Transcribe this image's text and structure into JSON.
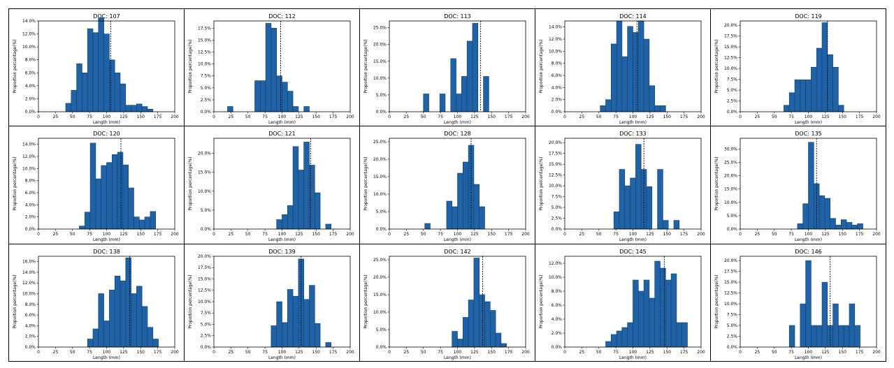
{
  "colors": {
    "bar": "#1f63a6",
    "bar_edge": "#123f73",
    "mean_line": "#000000"
  },
  "chart_data": [
    {
      "type": "bar",
      "title": "DOC: 107",
      "xlabel": "Length (mm)",
      "ylabel": "Proportion percentage(%)",
      "xlim": [
        0,
        200
      ],
      "ylim": [
        0,
        14
      ],
      "yticks": [
        0,
        2,
        4,
        6,
        8,
        10,
        12,
        14
      ],
      "ytick_labels": [
        "0.0%",
        "2.0%",
        "4.0%",
        "6.0%",
        "8.0%",
        "10.0%",
        "12.0%",
        "14.0%"
      ],
      "xticks": [
        0,
        25,
        50,
        75,
        100,
        125,
        150,
        175,
        200
      ],
      "bin_start": 40,
      "bin_width": 8,
      "values": [
        1.3,
        3.3,
        7.4,
        6.0,
        12.8,
        12.2,
        14.5,
        12.0,
        8.0,
        6.0,
        4.3,
        1.0,
        1.0,
        1.2,
        0.8,
        0.4
      ],
      "mean": 106
    },
    {
      "type": "bar",
      "title": "DOC: 112",
      "xlabel": "Length (mm)",
      "ylabel": "Proportion percentage(%)",
      "xlim": [
        0,
        200
      ],
      "ylim": [
        0,
        19
      ],
      "yticks": [
        0,
        2.5,
        5,
        7.5,
        10,
        12.5,
        15,
        17.5
      ],
      "ytick_labels": [
        "0.0%",
        "2.5%",
        "5.0%",
        "7.5%",
        "10.0%",
        "12.5%",
        "15.0%",
        "17.5%"
      ],
      "xticks": [
        0,
        25,
        50,
        75,
        100,
        125,
        150,
        175,
        200
      ],
      "bin_start": 20,
      "bin_width": 8,
      "values": [
        1.1,
        0,
        0,
        0,
        0,
        6.5,
        6.5,
        18.5,
        17.5,
        7.5,
        6.2,
        4.3,
        1.1,
        0,
        1.1
      ],
      "mean": 98
    },
    {
      "type": "bar",
      "title": "DOC: 113",
      "xlabel": "Length (mm)",
      "ylabel": "Proportion percentage(%)",
      "xlim": [
        0,
        200
      ],
      "ylim": [
        0,
        27
      ],
      "yticks": [
        0,
        5,
        10,
        15,
        20,
        25
      ],
      "ytick_labels": [
        "0.0%",
        "5.0%",
        "10.0%",
        "15.0%",
        "20.0%",
        "25.0%"
      ],
      "xticks": [
        0,
        25,
        50,
        75,
        100,
        125,
        150,
        175,
        200
      ],
      "bin_start": 50,
      "bin_width": 8,
      "values": [
        5.3,
        0,
        0,
        5.3,
        0,
        15.8,
        5.3,
        10.5,
        21.0,
        26.3,
        0,
        10.5
      ],
      "mean": 134
    },
    {
      "type": "bar",
      "title": "DOC: 114",
      "xlabel": "Length (mm)",
      "ylabel": "Proportion percentage(%)",
      "xlim": [
        0,
        200
      ],
      "ylim": [
        0,
        15
      ],
      "yticks": [
        0,
        2,
        4,
        6,
        8,
        10,
        12,
        14
      ],
      "ytick_labels": [
        "0.0%",
        "2.0%",
        "4.0%",
        "6.0%",
        "8.0%",
        "10.0%",
        "12.0%",
        "14.0%"
      ],
      "xticks": [
        0,
        25,
        50,
        75,
        100,
        125,
        150,
        175,
        200
      ],
      "bin_start": 52,
      "bin_width": 8,
      "values": [
        1.0,
        2.0,
        11.2,
        15.0,
        9.1,
        14.1,
        13.1,
        15.0,
        12.0,
        4.3,
        1.0,
        1.0
      ],
      "mean": 106
    },
    {
      "type": "bar",
      "title": "DOC: 119",
      "xlabel": "Length (mm)",
      "ylabel": "Proportion percentage(%)",
      "xlim": [
        0,
        200
      ],
      "ylim": [
        0,
        21
      ],
      "yticks": [
        0,
        2.5,
        5,
        7.5,
        10,
        12.5,
        15,
        17.5,
        20
      ],
      "ytick_labels": [
        "0.0%",
        "2.5%",
        "5.0%",
        "7.5%",
        "10.0%",
        "12.5%",
        "15.0%",
        "17.5%",
        "20.0%"
      ],
      "xticks": [
        0,
        25,
        50,
        75,
        100,
        125,
        150,
        175,
        200
      ],
      "bin_start": 64,
      "bin_width": 8,
      "values": [
        1.5,
        4.4,
        7.4,
        7.4,
        7.4,
        10.3,
        14.7,
        20.6,
        13.2,
        10.3,
        1.5
      ],
      "mean": 128
    },
    {
      "type": "bar",
      "title": "DOC: 120",
      "xlabel": "Length (mm)",
      "ylabel": "Proportion percentage(%)",
      "xlim": [
        0,
        200
      ],
      "ylim": [
        0,
        15
      ],
      "yticks": [
        0,
        2,
        4,
        6,
        8,
        10,
        12,
        14
      ],
      "ytick_labels": [
        "0.0%",
        "2.0%",
        "4.0%",
        "6.0%",
        "8.0%",
        "10.0%",
        "12.0%",
        "14.0%"
      ],
      "xticks": [
        0,
        25,
        50,
        75,
        100,
        125,
        150,
        175,
        200
      ],
      "bin_start": 60,
      "bin_width": 8,
      "values": [
        0.5,
        2.8,
        14.2,
        8.3,
        10.5,
        11.0,
        12.3,
        12.7,
        10.6,
        6.8,
        2.0,
        1.5,
        2.0,
        2.9
      ],
      "mean": 121
    },
    {
      "type": "bar",
      "title": "DOC: 121",
      "xlabel": "Length (mm)",
      "ylabel": "Proportion percentage(%)",
      "xlim": [
        0,
        200
      ],
      "ylim": [
        0,
        24
      ],
      "yticks": [
        0,
        5,
        10,
        15,
        20
      ],
      "ytick_labels": [
        "0.0%",
        "5.0%",
        "10.0%",
        "15.0%",
        "20.0%"
      ],
      "xticks": [
        0,
        25,
        50,
        75,
        100,
        125,
        150,
        175,
        200
      ],
      "bin_start": 92,
      "bin_width": 8,
      "values": [
        2.5,
        3.8,
        6.2,
        21.8,
        15.6,
        23.0,
        16.9,
        9.6,
        0,
        1.3
      ],
      "mean": 142
    },
    {
      "type": "bar",
      "title": "DOC: 128",
      "xlabel": "Length (mm)",
      "ylabel": "Proportion percentage(%)",
      "xlim": [
        0,
        200
      ],
      "ylim": [
        0,
        26
      ],
      "yticks": [
        0,
        5,
        10,
        15,
        20,
        25
      ],
      "ytick_labels": [
        "0.0%",
        "5.0%",
        "10.0%",
        "15.0%",
        "20.0%",
        "25.0%"
      ],
      "xticks": [
        0,
        25,
        50,
        75,
        100,
        125,
        150,
        175,
        200
      ],
      "bin_start": 52,
      "bin_width": 8,
      "values": [
        1.6,
        0,
        0,
        0,
        8.0,
        6.4,
        16.0,
        19.2,
        24.0,
        12.8,
        6.4
      ],
      "mean": 120
    },
    {
      "type": "bar",
      "title": "DOC: 133",
      "xlabel": "Length (mm)",
      "ylabel": "Proportion percentage(%)",
      "xlim": [
        0,
        200
      ],
      "ylim": [
        0,
        21
      ],
      "yticks": [
        0,
        2.5,
        5,
        7.5,
        10,
        12.5,
        15,
        17.5,
        20
      ],
      "ytick_labels": [
        "0.0%",
        "2.5%",
        "5.0%",
        "7.5%",
        "10.0%",
        "12.5%",
        "15.0%",
        "17.5%",
        "20.0%"
      ],
      "xticks": [
        0,
        25,
        50,
        75,
        100,
        125,
        150,
        175,
        200
      ],
      "bin_start": 72,
      "bin_width": 8,
      "values": [
        4.0,
        13.8,
        10.0,
        11.8,
        19.6,
        13.8,
        9.8,
        0,
        13.8,
        2.0,
        0,
        2.0
      ],
      "mean": 116
    },
    {
      "type": "bar",
      "title": "DOC: 135",
      "xlabel": "Length (mm)",
      "ylabel": "Proportion percentage(%)",
      "xlim": [
        0,
        200
      ],
      "ylim": [
        0,
        34
      ],
      "yticks": [
        0,
        5,
        10,
        15,
        20,
        25,
        30
      ],
      "ytick_labels": [
        "0.0%",
        "5.0%",
        "10.0%",
        "15.0%",
        "20.0%",
        "25.0%",
        "30.0%"
      ],
      "xticks": [
        0,
        25,
        50,
        75,
        100,
        125,
        150,
        175,
        200
      ],
      "bin_start": 84,
      "bin_width": 8,
      "values": [
        2.0,
        9.5,
        32.5,
        17.0,
        12.5,
        11.5,
        4.0,
        1.5,
        3.5,
        2.5,
        1.5,
        2.0
      ],
      "mean": 112
    },
    {
      "type": "bar",
      "title": "DOC: 138",
      "xlabel": "Length (mm)",
      "ylabel": "Proportion percentage(%)",
      "xlim": [
        0,
        200
      ],
      "ylim": [
        0,
        17
      ],
      "yticks": [
        0,
        2,
        4,
        6,
        8,
        10,
        12,
        14,
        16
      ],
      "ytick_labels": [
        "0.0%",
        "2.0%",
        "4.0%",
        "6.0%",
        "8.0%",
        "10.0%",
        "12.0%",
        "14.0%",
        "16.0%"
      ],
      "xticks": [
        0,
        25,
        50,
        75,
        100,
        125,
        150,
        175,
        200
      ],
      "bin_start": 72,
      "bin_width": 8,
      "values": [
        1.5,
        3.4,
        10.0,
        4.9,
        10.7,
        13.3,
        12.4,
        16.7,
        10.0,
        11.4,
        7.6,
        3.7,
        1.5
      ],
      "mean": 134
    },
    {
      "type": "bar",
      "title": "DOC: 139",
      "xlabel": "Length (mm)",
      "ylabel": "Proportion percentage(%)",
      "xlim": [
        0,
        200
      ],
      "ylim": [
        0,
        20
      ],
      "yticks": [
        0,
        2.5,
        5,
        7.5,
        10,
        12.5,
        15,
        17.5,
        20
      ],
      "ytick_labels": [
        "0.0%",
        "2.5%",
        "5.0%",
        "7.5%",
        "10.0%",
        "12.5%",
        "15.0%",
        "17.5%",
        "20.0%"
      ],
      "xticks": [
        0,
        25,
        50,
        75,
        100,
        125,
        150,
        175,
        200
      ],
      "bin_start": 84,
      "bin_width": 8,
      "values": [
        4.7,
        10.0,
        5.4,
        12.7,
        11.2,
        19.4,
        10.5,
        13.6,
        5.2,
        0,
        1.0
      ],
      "mean": 128
    },
    {
      "type": "bar",
      "title": "DOC: 142",
      "xlabel": "Length (mm)",
      "ylabel": "Proportion percentage(%)",
      "xlim": [
        0,
        200
      ],
      "ylim": [
        0,
        26
      ],
      "yticks": [
        0,
        5,
        10,
        15,
        20,
        25
      ],
      "ytick_labels": [
        "0.0%",
        "5.0%",
        "10.0%",
        "15.0%",
        "20.0%",
        "25.0%"
      ],
      "xticks": [
        0,
        25,
        50,
        75,
        100,
        125,
        150,
        175,
        200
      ],
      "bin_start": 92,
      "bin_width": 8,
      "values": [
        4.5,
        2.3,
        8.5,
        13.5,
        25.5,
        15.0,
        13.0,
        10.5,
        4.0,
        1.0
      ],
      "mean": 137
    },
    {
      "type": "bar",
      "title": "DOC: 145",
      "xlabel": "Length (mm)",
      "ylabel": "Proportion percentage(%)",
      "xlim": [
        0,
        200
      ],
      "ylim": [
        0,
        13
      ],
      "yticks": [
        0,
        2,
        4,
        6,
        8,
        10,
        12
      ],
      "ytick_labels": [
        "0.0%",
        "2.0%",
        "4.0%",
        "6.0%",
        "8.0%",
        "10.0%",
        "12.0%"
      ],
      "xticks": [
        0,
        25,
        50,
        75,
        100,
        125,
        150,
        175,
        200
      ],
      "bin_start": 60,
      "bin_width": 8,
      "values": [
        0.8,
        1.8,
        2.3,
        2.8,
        3.5,
        9.6,
        8.0,
        9.6,
        7.0,
        12.3,
        11.3,
        9.6,
        10.5,
        3.5,
        3.5
      ],
      "mean": 146
    },
    {
      "type": "bar",
      "title": "DOC: 146",
      "xlabel": "Length (mm)",
      "ylabel": "Proportion percentage(%)",
      "xlim": [
        0,
        200
      ],
      "ylim": [
        0,
        21
      ],
      "yticks": [
        0,
        2.5,
        5,
        7.5,
        10,
        12.5,
        15,
        17.5,
        20
      ],
      "ytick_labels": [
        "0.0%",
        "2.5%",
        "5.0%",
        "7.5%",
        "10.0%",
        "12.5%",
        "15.0%",
        "17.5%",
        "20.0%"
      ],
      "xticks": [
        0,
        25,
        50,
        75,
        100,
        125,
        150,
        175,
        200
      ],
      "bin_start": 72,
      "bin_width": 8,
      "values": [
        5.0,
        0,
        10.0,
        20.0,
        5.0,
        5.0,
        15.0,
        5.0,
        10.0,
        5.0,
        5.0,
        10.0,
        5.0
      ],
      "mean": 132
    }
  ]
}
